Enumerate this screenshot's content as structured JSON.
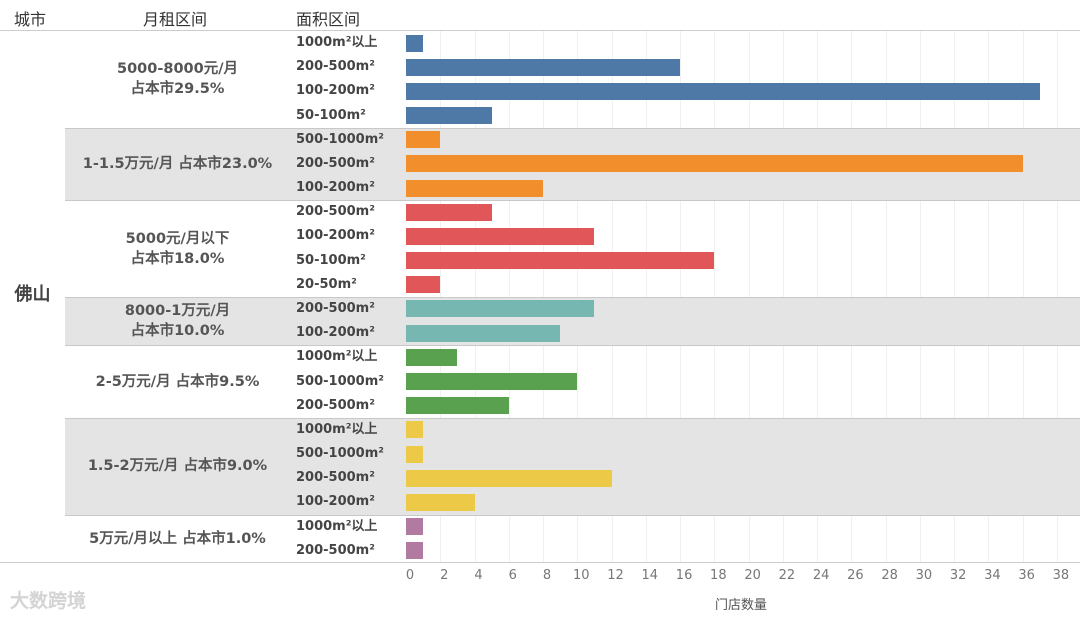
{
  "chart_data": {
    "type": "bar",
    "orientation": "horizontal",
    "headers": {
      "city": "城市",
      "rent": "月租区间",
      "area": "面积区间"
    },
    "city": "佛山",
    "xlabel": "门店数量",
    "xlim": [
      0,
      38
    ],
    "xticks": [
      "0",
      "2",
      "4",
      "6",
      "8",
      "10",
      "12",
      "14",
      "16",
      "18",
      "20",
      "22",
      "24",
      "26",
      "28",
      "30",
      "32",
      "34",
      "36",
      "38"
    ],
    "groups": [
      {
        "label": "5000-8000元/月\n占本市29.5%",
        "color": "#4e79a7",
        "rows": [
          {
            "area": "1000m²以上",
            "value": 1
          },
          {
            "area": "200-500m²",
            "value": 16
          },
          {
            "area": "100-200m²",
            "value": 37
          },
          {
            "area": "50-100m²",
            "value": 5
          }
        ]
      },
      {
        "label": "1-1.5万元/月  占本市23.0%",
        "color": "#f28e2b",
        "rows": [
          {
            "area": "500-1000m²",
            "value": 2
          },
          {
            "area": "200-500m²",
            "value": 36
          },
          {
            "area": "100-200m²",
            "value": 8
          }
        ]
      },
      {
        "label": "5000元/月以下\n占本市18.0%",
        "color": "#e15759",
        "rows": [
          {
            "area": "200-500m²",
            "value": 5
          },
          {
            "area": "100-200m²",
            "value": 11
          },
          {
            "area": "50-100m²",
            "value": 18
          },
          {
            "area": "20-50m²",
            "value": 2
          }
        ]
      },
      {
        "label": "8000-1万元/月\n占本市10.0%",
        "color": "#76b7b2",
        "rows": [
          {
            "area": "200-500m²",
            "value": 11
          },
          {
            "area": "100-200m²",
            "value": 9
          }
        ]
      },
      {
        "label": "2-5万元/月  占本市9.5%",
        "color": "#59a14f",
        "rows": [
          {
            "area": "1000m²以上",
            "value": 3
          },
          {
            "area": "500-1000m²",
            "value": 10
          },
          {
            "area": "200-500m²",
            "value": 6
          }
        ]
      },
      {
        "label": "1.5-2万元/月  占本市9.0%",
        "color": "#edc948",
        "rows": [
          {
            "area": "1000m²以上",
            "value": 1
          },
          {
            "area": "500-1000m²",
            "value": 1
          },
          {
            "area": "200-500m²",
            "value": 12
          },
          {
            "area": "100-200m²",
            "value": 4
          }
        ]
      },
      {
        "label": "5万元/月以上  占本市1.0%",
        "color": "#b07aa1",
        "rows": [
          {
            "area": "1000m²以上",
            "value": 1
          },
          {
            "area": "200-500m²",
            "value": 1
          }
        ]
      }
    ]
  },
  "watermark": "大数跨境"
}
